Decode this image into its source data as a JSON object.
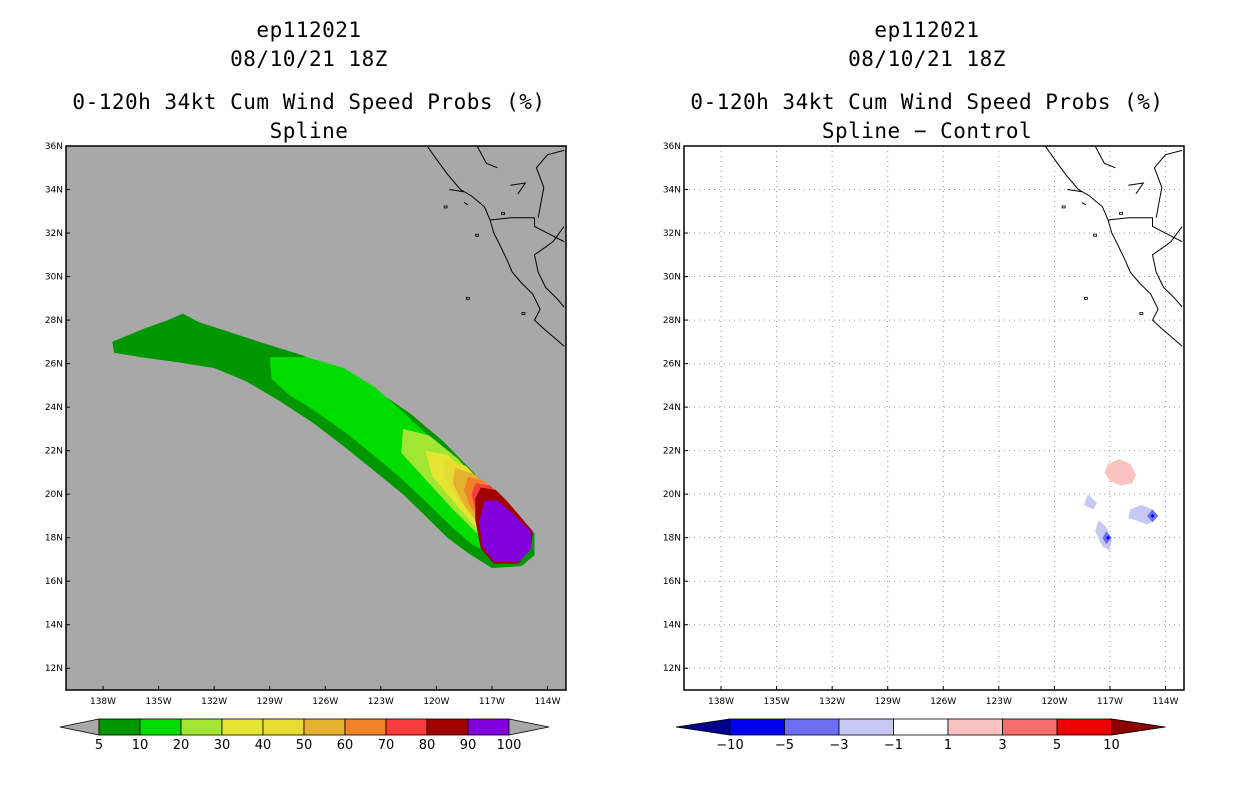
{
  "panels": [
    {
      "storm": "ep112021",
      "datetime": "08/10/21 18Z",
      "product": "0-120h 34kt Cum Wind Speed Probs (%)",
      "subtitle": "Spline"
    },
    {
      "storm": "ep112021",
      "datetime": "08/10/21 18Z",
      "product": "0-120h 34kt Cum Wind Speed Probs (%)",
      "subtitle": "Spline − Control"
    }
  ],
  "chart_data": [
    {
      "type": "heatmap",
      "title": "0-120h 34kt Cum Wind Speed Probs (%) Spline",
      "lon_ticks": [
        "138W",
        "135W",
        "132W",
        "129W",
        "126W",
        "123W",
        "120W",
        "117W",
        "114W"
      ],
      "lat_ticks": [
        "36N",
        "34N",
        "32N",
        "30N",
        "28N",
        "26N",
        "24N",
        "22N",
        "20N",
        "18N",
        "16N",
        "14N",
        "12N"
      ],
      "lon_range": [
        -140,
        -113
      ],
      "lat_range": [
        11,
        36
      ],
      "background_color": "#a8a8a8",
      "grid": false,
      "colorbar": {
        "levels": [
          "5",
          "10",
          "20",
          "30",
          "40",
          "50",
          "60",
          "70",
          "80",
          "90",
          "100"
        ],
        "colors": [
          "#009600",
          "#00dc00",
          "#a0e632",
          "#e6e632",
          "#e6dc32",
          "#e6af2d",
          "#f08228",
          "#fa3c3c",
          "#a00000",
          "#8200dc"
        ]
      },
      "contours": [
        {
          "level": 5,
          "color": "#009600",
          "polygon": [
            [
              -137.5,
              27.0
            ],
            [
              -135.8,
              27.6
            ],
            [
              -134.5,
              28.0
            ],
            [
              -133.7,
              28.3
            ],
            [
              -132.8,
              27.9
            ],
            [
              -131.0,
              27.4
            ],
            [
              -129.2,
              26.9
            ],
            [
              -127.3,
              26.4
            ],
            [
              -125.3,
              25.7
            ],
            [
              -123.3,
              24.8
            ],
            [
              -121.4,
              23.7
            ],
            [
              -119.6,
              22.4
            ],
            [
              -118.0,
              21.0
            ],
            [
              -116.4,
              19.6
            ],
            [
              -115.3,
              18.6
            ],
            [
              -114.7,
              18.2
            ],
            [
              -114.7,
              17.2
            ],
            [
              -115.4,
              16.7
            ],
            [
              -117.0,
              16.6
            ],
            [
              -118.3,
              17.3
            ],
            [
              -119.4,
              18.0
            ],
            [
              -120.6,
              19.0
            ],
            [
              -121.8,
              20.0
            ],
            [
              -123.4,
              21.1
            ],
            [
              -125.0,
              22.2
            ],
            [
              -126.7,
              23.3
            ],
            [
              -128.5,
              24.3
            ],
            [
              -130.3,
              25.2
            ],
            [
              -132.0,
              25.8
            ],
            [
              -134.3,
              26.1
            ],
            [
              -136.0,
              26.3
            ],
            [
              -137.4,
              26.5
            ]
          ]
        },
        {
          "level": 10,
          "color": "#00dc00",
          "polygon": [
            [
              -129.0,
              26.3
            ],
            [
              -127.0,
              26.3
            ],
            [
              -125.0,
              25.8
            ],
            [
              -123.3,
              24.9
            ],
            [
              -121.7,
              23.7
            ],
            [
              -120.1,
              22.4
            ],
            [
              -118.5,
              21.0
            ],
            [
              -116.9,
              19.6
            ],
            [
              -115.5,
              18.7
            ],
            [
              -115.0,
              18.2
            ],
            [
              -115.6,
              17.3
            ],
            [
              -116.8,
              17.1
            ],
            [
              -118.1,
              17.7
            ],
            [
              -119.3,
              18.6
            ],
            [
              -120.5,
              19.6
            ],
            [
              -122.0,
              20.8
            ],
            [
              -123.4,
              21.8
            ],
            [
              -125.0,
              22.9
            ],
            [
              -126.7,
              23.9
            ],
            [
              -128.0,
              24.6
            ],
            [
              -128.9,
              25.3
            ]
          ]
        },
        {
          "level": 20,
          "color": "#a0e632",
          "polygon": [
            [
              -121.8,
              23.0
            ],
            [
              -120.4,
              22.7
            ],
            [
              -118.8,
              21.6
            ],
            [
              -117.4,
              20.2
            ],
            [
              -116.0,
              19.2
            ],
            [
              -115.1,
              18.5
            ],
            [
              -115.5,
              17.6
            ],
            [
              -116.6,
              17.4
            ],
            [
              -117.8,
              18.2
            ],
            [
              -119.1,
              19.3
            ],
            [
              -120.5,
              20.6
            ],
            [
              -121.9,
              21.9
            ]
          ]
        },
        {
          "level": 30,
          "color": "#e6e632",
          "polygon": [
            [
              -120.6,
              22.0
            ],
            [
              -119.4,
              21.8
            ],
            [
              -118.3,
              21.0
            ],
            [
              -117.1,
              19.9
            ],
            [
              -115.9,
              19.0
            ],
            [
              -115.1,
              18.5
            ],
            [
              -115.5,
              17.7
            ],
            [
              -116.6,
              17.5
            ],
            [
              -117.7,
              18.3
            ],
            [
              -118.9,
              19.5
            ],
            [
              -120.2,
              20.8
            ]
          ]
        },
        {
          "level": 40,
          "color": "#e6dc32",
          "polygon": [
            [
              -119.6,
              21.6
            ],
            [
              -118.4,
              21.3
            ],
            [
              -117.3,
              20.3
            ],
            [
              -116.1,
              19.2
            ],
            [
              -115.2,
              18.5
            ],
            [
              -115.6,
              17.7
            ],
            [
              -116.6,
              17.6
            ],
            [
              -117.6,
              18.4
            ],
            [
              -118.7,
              19.6
            ],
            [
              -119.6,
              20.8
            ]
          ]
        },
        {
          "level": 50,
          "color": "#e6af2d",
          "polygon": [
            [
              -119.0,
              21.2
            ],
            [
              -117.9,
              20.9
            ],
            [
              -117.0,
              20.1
            ],
            [
              -116.0,
              19.2
            ],
            [
              -115.2,
              18.5
            ],
            [
              -115.7,
              17.8
            ],
            [
              -116.6,
              17.7
            ],
            [
              -117.6,
              18.5
            ],
            [
              -118.6,
              19.6
            ],
            [
              -119.1,
              20.5
            ]
          ]
        },
        {
          "level": 60,
          "color": "#f08228",
          "polygon": [
            [
              -118.3,
              20.8
            ],
            [
              -117.4,
              20.6
            ],
            [
              -116.6,
              19.9
            ],
            [
              -115.8,
              19.1
            ],
            [
              -115.2,
              18.5
            ],
            [
              -115.7,
              17.9
            ],
            [
              -116.6,
              17.8
            ],
            [
              -117.5,
              18.6
            ],
            [
              -118.2,
              19.5
            ],
            [
              -118.5,
              20.2
            ]
          ]
        },
        {
          "level": 70,
          "color": "#fa3c3c",
          "polygon": [
            [
              -117.9,
              20.5
            ],
            [
              -117.1,
              20.4
            ],
            [
              -116.4,
              19.8
            ],
            [
              -115.7,
              19.0
            ],
            [
              -115.2,
              18.5
            ],
            [
              -115.7,
              17.8
            ],
            [
              -116.6,
              17.8
            ],
            [
              -117.4,
              18.5
            ],
            [
              -117.9,
              19.3
            ],
            [
              -118.1,
              20.0
            ]
          ]
        },
        {
          "level": 80,
          "color": "#a00000",
          "polygon": [
            [
              -117.6,
              20.3
            ],
            [
              -116.8,
              20.2
            ],
            [
              -116.2,
              19.7
            ],
            [
              -115.6,
              19.1
            ],
            [
              -115.1,
              18.6
            ],
            [
              -114.8,
              18.3
            ],
            [
              -114.9,
              17.5
            ],
            [
              -115.6,
              16.8
            ],
            [
              -116.9,
              16.8
            ],
            [
              -117.6,
              17.5
            ],
            [
              -117.9,
              18.8
            ],
            [
              -117.9,
              19.8
            ]
          ]
        },
        {
          "level": 90,
          "color": "#8200dc",
          "polygon": [
            [
              -117.4,
              19.7
            ],
            [
              -116.7,
              19.7
            ],
            [
              -116.0,
              19.2
            ],
            [
              -115.4,
              18.7
            ],
            [
              -114.9,
              18.3
            ],
            [
              -114.9,
              17.5
            ],
            [
              -115.5,
              16.9
            ],
            [
              -116.9,
              16.9
            ],
            [
              -117.5,
              17.6
            ],
            [
              -117.7,
              18.7
            ]
          ]
        }
      ]
    },
    {
      "type": "heatmap",
      "title": "0-120h 34kt Cum Wind Speed Probs (%) Spline − Control",
      "lon_ticks": [
        "138W",
        "135W",
        "132W",
        "129W",
        "126W",
        "123W",
        "120W",
        "117W",
        "114W"
      ],
      "lat_ticks": [
        "36N",
        "34N",
        "32N",
        "30N",
        "28N",
        "26N",
        "24N",
        "22N",
        "20N",
        "18N",
        "16N",
        "14N",
        "12N"
      ],
      "lon_range": [
        -140,
        -113
      ],
      "lat_range": [
        11,
        36
      ],
      "background_color": "#ffffff",
      "grid": true,
      "colorbar": {
        "levels": [
          "−10",
          "−5",
          "−3",
          "−1",
          "1",
          "3",
          "5",
          "10"
        ],
        "colors": [
          "#00008c",
          "#0000f0",
          "#6e6ef0",
          "#c8c8f5",
          "#ffffff",
          "#fac3c3",
          "#f56e6e",
          "#f00000",
          "#8c0000"
        ]
      },
      "contours": [
        {
          "level": 1,
          "color": "#fac3c3",
          "polygon": [
            [
              -117.1,
              21.4
            ],
            [
              -116.5,
              21.6
            ],
            [
              -115.9,
              21.4
            ],
            [
              -115.6,
              20.9
            ],
            [
              -115.8,
              20.5
            ],
            [
              -116.4,
              20.4
            ],
            [
              -117.0,
              20.6
            ],
            [
              -117.3,
              21.0
            ]
          ]
        },
        {
          "level": -1,
          "color": "#c8c8f5",
          "polygon": [
            [
              -118.2,
              20.0
            ],
            [
              -117.7,
              19.6
            ],
            [
              -117.9,
              19.3
            ],
            [
              -118.4,
              19.5
            ]
          ]
        },
        {
          "level": -1,
          "color": "#c8c8f5",
          "polygon": [
            [
              -115.3,
              19.5
            ],
            [
              -114.7,
              19.3
            ],
            [
              -114.6,
              18.8
            ],
            [
              -115.0,
              18.6
            ],
            [
              -115.6,
              18.8
            ],
            [
              -116.0,
              18.9
            ],
            [
              -115.9,
              19.3
            ]
          ]
        },
        {
          "level": -1,
          "color": "#c8c8f5",
          "polygon": [
            [
              -117.6,
              18.8
            ],
            [
              -117.2,
              18.5
            ],
            [
              -116.9,
              17.9
            ],
            [
              -117.0,
              17.4
            ],
            [
              -117.4,
              17.6
            ],
            [
              -117.8,
              18.3
            ]
          ]
        },
        {
          "level": -3,
          "color": "#6e6ef0",
          "polygon": [
            [
              -117.2,
              18.3
            ],
            [
              -116.9,
              18.0
            ],
            [
              -117.2,
              17.7
            ],
            [
              -117.4,
              18.0
            ]
          ]
        },
        {
          "level": -3,
          "color": "#6e6ef0",
          "polygon": [
            [
              -114.7,
              19.3
            ],
            [
              -114.4,
              19.0
            ],
            [
              -114.7,
              18.7
            ],
            [
              -115.0,
              19.0
            ]
          ]
        },
        {
          "level": -5,
          "color": "#0000f0",
          "polygon": [
            [
              -117.1,
              18.1
            ],
            [
              -117.0,
              18.0
            ],
            [
              -117.1,
              17.9
            ],
            [
              -117.2,
              18.0
            ]
          ]
        },
        {
          "level": -5,
          "color": "#0000f0",
          "polygon": [
            [
              -114.7,
              19.1
            ],
            [
              -114.6,
              19.0
            ],
            [
              -114.7,
              18.9
            ],
            [
              -114.8,
              19.0
            ]
          ]
        }
      ]
    }
  ],
  "coastlines": [
    [
      [
        -120.5,
        36.0
      ],
      [
        -120.0,
        35.4
      ],
      [
        -119.4,
        34.7
      ],
      [
        -118.7,
        34.0
      ],
      [
        -118.1,
        33.7
      ],
      [
        -117.4,
        33.2
      ],
      [
        -117.1,
        32.6
      ],
      [
        -116.9,
        32.0
      ],
      [
        -116.6,
        31.5
      ],
      [
        -116.2,
        30.8
      ],
      [
        -115.9,
        30.2
      ],
      [
        -115.4,
        29.7
      ],
      [
        -114.8,
        29.2
      ],
      [
        -114.4,
        28.5
      ],
      [
        -114.7,
        28.0
      ],
      [
        -114.2,
        27.6
      ],
      [
        -113.5,
        27.1
      ],
      [
        -113.1,
        26.8
      ]
    ],
    [
      [
        -113.1,
        32.3
      ],
      [
        -113.7,
        31.6
      ],
      [
        -114.2,
        31.3
      ],
      [
        -114.7,
        31.0
      ],
      [
        -114.5,
        30.2
      ],
      [
        -114.1,
        29.5
      ],
      [
        -113.5,
        29.0
      ],
      [
        -113.1,
        28.6
      ]
    ],
    [
      [
        -117.1,
        32.6
      ],
      [
        -116.0,
        32.7
      ],
      [
        -115.0,
        32.7
      ],
      [
        -114.7,
        32.7
      ],
      [
        -114.7,
        32.3
      ],
      [
        -113.1,
        31.6
      ]
    ],
    [
      [
        -114.5,
        32.7
      ],
      [
        -114.2,
        34.1
      ],
      [
        -114.6,
        35.0
      ],
      [
        -114.0,
        35.6
      ],
      [
        -113.1,
        35.8
      ]
    ],
    [
      [
        -117.8,
        36.0
      ],
      [
        -117.3,
        35.2
      ],
      [
        -116.7,
        35.0
      ]
    ],
    [
      [
        -119.3,
        34.0
      ],
      [
        -118.5,
        33.9
      ]
    ],
    [
      [
        -118.5,
        33.4
      ],
      [
        -118.3,
        33.3
      ]
    ],
    [
      [
        -116.0,
        34.2
      ],
      [
        -115.2,
        34.3
      ],
      [
        -115.6,
        33.8
      ]
    ]
  ],
  "islands": [
    [
      -118.3,
      29.0
    ],
    [
      -116.4,
      32.9
    ],
    [
      -119.5,
      33.2
    ],
    [
      -117.8,
      31.9
    ],
    [
      -115.3,
      28.3
    ]
  ]
}
